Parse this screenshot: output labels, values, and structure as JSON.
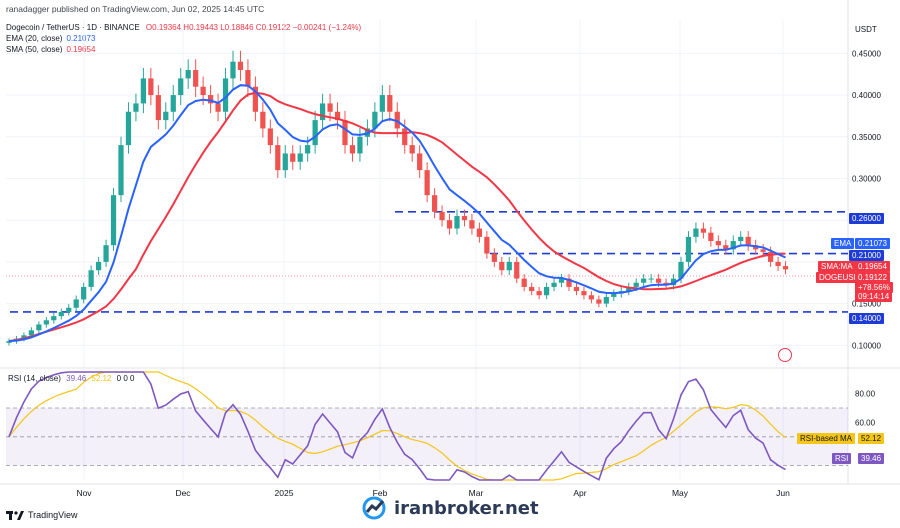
{
  "header": {
    "publisher_line": "ranadagger published on TradingView.com, Jun 02, 2025 14:45 UTC",
    "symbol": "Dogecoin / TetherUS · 1D · BINANCE",
    "ohlc": "O0.19364 H0.19443 L0.18846 C0.19122 −0.00241 (−1.24%)",
    "ema_label": "EMA (20, close)",
    "ema_value": "0.21073",
    "sma_label": "SMA (50, close)",
    "sma_value": "0.19654"
  },
  "price_axis": {
    "currency": "USDT",
    "ticks": [
      "0.45000",
      "0.40000",
      "0.35000",
      "0.30000",
      "0.25000",
      "0.20000",
      "0.15000",
      "0.10000"
    ]
  },
  "badges": {
    "level_260": "0.26000",
    "ema_tag": "EMA",
    "ema_val": "0.21073",
    "level_210": "0.21000",
    "sma_tag": "SMA:MA",
    "sma_val": "0.19654",
    "symbol_tag": "DOGEUSDT",
    "last_price": "0.19122",
    "change": "+78.56%",
    "countdown": "09:14:14",
    "level_140": "0.14000"
  },
  "time_axis": [
    "Nov",
    "Dec",
    "2025",
    "Feb",
    "Mar",
    "Apr",
    "May",
    "Jun"
  ],
  "rsi": {
    "label": "RSI (14, close)",
    "value": "39.46",
    "ma_value": "52.12",
    "extra": "0  0  0",
    "axis_ticks": [
      "80.00",
      "60.00"
    ],
    "ma_tag": "RSI-based MA",
    "ma_tag_value": "52.12",
    "rsi_tag": "RSI",
    "rsi_tag_value": "39.46"
  },
  "footer": {
    "tv": "TradingView",
    "brand": "iranbroker.net"
  },
  "colors": {
    "up": "#26a69a",
    "down": "#ef5350",
    "ema": "#2962ff",
    "sma": "#f23645",
    "rsi": "#7e57c2",
    "rsi_ma": "#f5c518",
    "level": "#1e3bd6"
  },
  "chart_data": {
    "type": "candlestick",
    "title": "Dogecoin / TetherUS · 1D · BINANCE",
    "y_unit": "USDT",
    "ylim": [
      0.08,
      0.49
    ],
    "x_labels": [
      "Nov",
      "Dec",
      "2025",
      "Feb",
      "Mar",
      "Apr",
      "May",
      "Jun"
    ],
    "horizontal_levels": [
      0.26,
      0.21,
      0.14
    ],
    "candles_close_approx": [
      0.105,
      0.108,
      0.112,
      0.118,
      0.125,
      0.13,
      0.135,
      0.14,
      0.145,
      0.155,
      0.17,
      0.19,
      0.2,
      0.22,
      0.28,
      0.34,
      0.38,
      0.39,
      0.42,
      0.4,
      0.37,
      0.38,
      0.4,
      0.42,
      0.43,
      0.41,
      0.4,
      0.39,
      0.38,
      0.42,
      0.44,
      0.43,
      0.41,
      0.38,
      0.36,
      0.34,
      0.31,
      0.33,
      0.32,
      0.33,
      0.34,
      0.37,
      0.39,
      0.38,
      0.37,
      0.34,
      0.33,
      0.35,
      0.36,
      0.38,
      0.4,
      0.38,
      0.36,
      0.34,
      0.33,
      0.31,
      0.28,
      0.26,
      0.25,
      0.24,
      0.255,
      0.25,
      0.24,
      0.23,
      0.21,
      0.2,
      0.19,
      0.2,
      0.18,
      0.17,
      0.165,
      0.16,
      0.17,
      0.175,
      0.18,
      0.17,
      0.165,
      0.16,
      0.155,
      0.15,
      0.158,
      0.162,
      0.165,
      0.17,
      0.175,
      0.18,
      0.18,
      0.175,
      0.172,
      0.18,
      0.2,
      0.23,
      0.24,
      0.235,
      0.225,
      0.22,
      0.215,
      0.225,
      0.23,
      0.22,
      0.215,
      0.212,
      0.2,
      0.195,
      0.191
    ],
    "series": [
      {
        "name": "EMA (20, close)",
        "last": 0.21073
      },
      {
        "name": "SMA (50, close)",
        "last": 0.19654
      },
      {
        "name": "RSI (14, close)",
        "last": 39.46
      },
      {
        "name": "RSI-based MA",
        "last": 52.12
      }
    ],
    "rsi_ylim": [
      20,
      95
    ]
  }
}
